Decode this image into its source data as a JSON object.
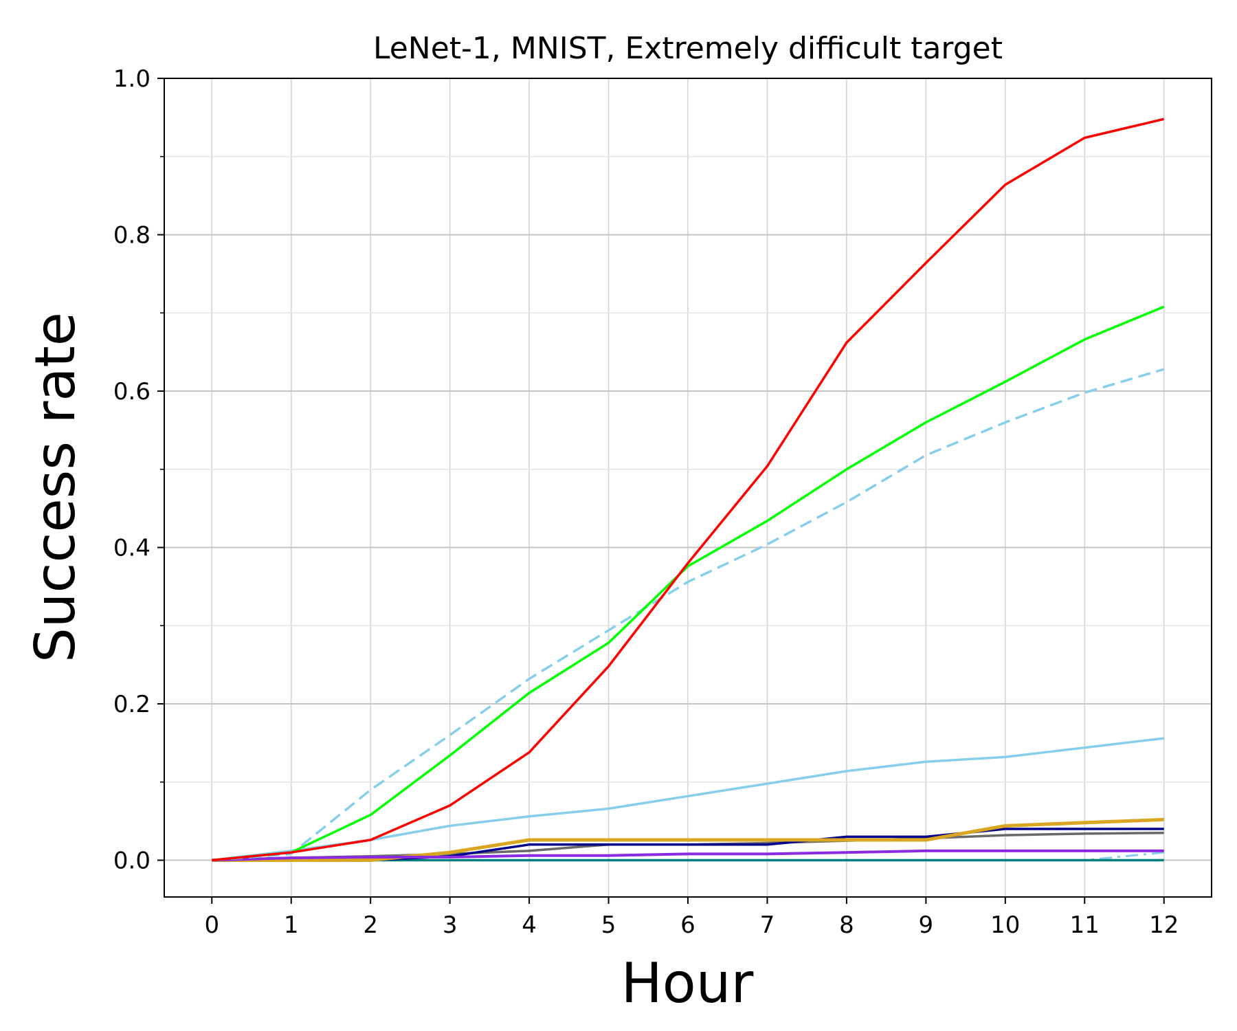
{
  "chart_data": {
    "type": "line",
    "title": "LeNet-1, MNIST, Extremely difficult target",
    "xlabel": "Hour",
    "ylabel": "Success rate",
    "xlim": [
      -0.6,
      12.6
    ],
    "ylim": [
      -0.047,
      1.0
    ],
    "x_ticks": [
      0,
      1,
      2,
      3,
      4,
      5,
      6,
      7,
      8,
      9,
      10,
      11,
      12
    ],
    "y_ticks": [
      0.0,
      0.2,
      0.4,
      0.6,
      0.8,
      1.0
    ],
    "y_tick_labels": [
      "0.0",
      "0.2",
      "0.4",
      "0.6",
      "0.8",
      "1.0"
    ],
    "y_minor_ticks": [
      0.1,
      0.3,
      0.5,
      0.7,
      0.9
    ],
    "grid": true,
    "legend": null,
    "series": [
      {
        "color": "#87ceeb",
        "style": "dashdot",
        "width": 3,
        "values": [
          0.0,
          0.0,
          0.0,
          0.0,
          0.0,
          0.0,
          0.0,
          0.0,
          0.0,
          0.0,
          0.0,
          0.0,
          0.01
        ]
      },
      {
        "color": "#008080",
        "style": "solid",
        "width": 3.5,
        "values": [
          0.0,
          0.0,
          0.0,
          0.0,
          0.0,
          0.0,
          0.0,
          0.0,
          0.0,
          0.0,
          0.0,
          0.0,
          0.0
        ]
      },
      {
        "color": "#696969",
        "style": "solid",
        "width": 3.5,
        "values": [
          0.0,
          0.003,
          0.005,
          0.008,
          0.012,
          0.02,
          0.02,
          0.022,
          0.025,
          0.028,
          0.032,
          0.034,
          0.035
        ]
      },
      {
        "color": "#00008b",
        "style": "solid",
        "width": 3.5,
        "values": [
          0.0,
          0.0,
          0.0,
          0.005,
          0.02,
          0.02,
          0.02,
          0.02,
          0.03,
          0.03,
          0.04,
          0.04,
          0.04
        ]
      },
      {
        "color": "#daa520",
        "style": "solid",
        "width": 5,
        "values": [
          0.0,
          0.0,
          0.0,
          0.01,
          0.026,
          0.026,
          0.026,
          0.026,
          0.026,
          0.026,
          0.044,
          0.048,
          0.052
        ]
      },
      {
        "color": "#8a2be2",
        "style": "solid",
        "width": 4,
        "values": [
          0.0,
          0.003,
          0.004,
          0.004,
          0.006,
          0.006,
          0.008,
          0.008,
          0.01,
          0.012,
          0.012,
          0.012,
          0.012
        ]
      },
      {
        "color": "#87ceeb",
        "style": "solid",
        "width": 3.5,
        "values": [
          0.0,
          0.012,
          0.026,
          0.044,
          0.056,
          0.066,
          0.082,
          0.098,
          0.114,
          0.126,
          0.132,
          0.144,
          0.156
        ]
      },
      {
        "color": "#87ceeb",
        "style": "dashed",
        "width": 3.5,
        "values": [
          0.0,
          0.008,
          0.09,
          0.16,
          0.232,
          0.294,
          0.356,
          0.404,
          0.458,
          0.518,
          0.56,
          0.598,
          0.628
        ]
      },
      {
        "color": "#00ff00",
        "style": "solid",
        "width": 3.5,
        "values": [
          0.0,
          0.01,
          0.058,
          0.134,
          0.214,
          0.278,
          0.376,
          0.434,
          0.5,
          0.56,
          0.612,
          0.666,
          0.708
        ]
      },
      {
        "color": "#ff0000",
        "style": "solid",
        "width": 3.5,
        "values": [
          0.0,
          0.01,
          0.026,
          0.07,
          0.138,
          0.248,
          0.38,
          0.504,
          0.662,
          0.764,
          0.864,
          0.924,
          0.948
        ]
      }
    ]
  }
}
